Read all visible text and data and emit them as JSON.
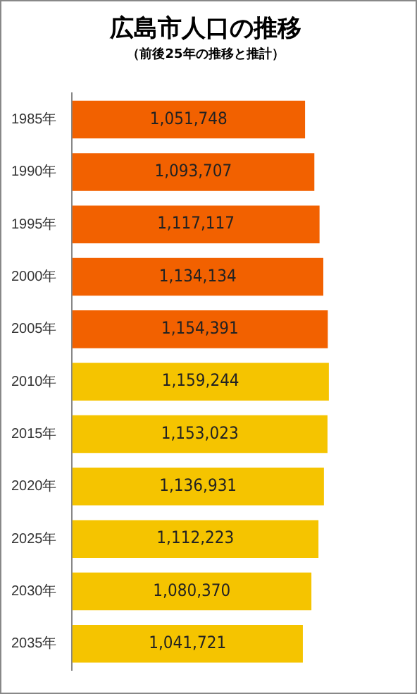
{
  "chart_data": {
    "type": "bar",
    "orientation": "horizontal",
    "title": "広島市人口の推移",
    "subtitle": "（前後25年の推移と推計）",
    "categories": [
      "1985年",
      "1990年",
      "1995年",
      "2000年",
      "2005年",
      "2010年",
      "2015年",
      "2020年",
      "2025年",
      "2030年",
      "2035年"
    ],
    "values": [
      1051748,
      1093707,
      1117117,
      1134134,
      1154391,
      1159244,
      1153023,
      1136931,
      1112223,
      1080370,
      1041721
    ],
    "colors": [
      "#f26100",
      "#f26100",
      "#f26100",
      "#f26100",
      "#f26100",
      "#f5c400",
      "#f5c400",
      "#f5c400",
      "#f5c400",
      "#f5c400",
      "#f5c400"
    ],
    "value_labels": [
      "1,051,748",
      "1,093,707",
      "1,117,117",
      "1,134,134",
      "1,154,391",
      "1,159,244",
      "1,153,023",
      "1,136,931",
      "1,112,223",
      "1,080,370",
      "1,041,721"
    ],
    "legend": false
  }
}
